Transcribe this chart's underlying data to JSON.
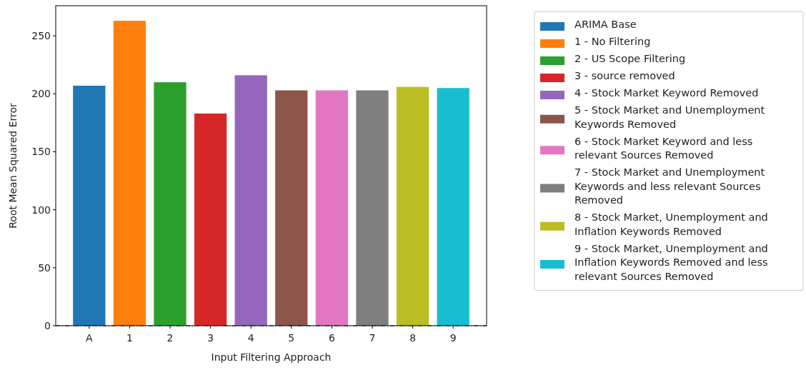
{
  "chart_data": {
    "type": "bar",
    "xlabel": "Input Filtering Approach",
    "ylabel": "Root Mean Squared Error",
    "categories": [
      "A",
      "1",
      "2",
      "3",
      "4",
      "5",
      "6",
      "7",
      "8",
      "9"
    ],
    "series": [
      {
        "name": "ARIMA Base",
        "color": "#1f77b4",
        "values": [
          207,
          null,
          null,
          null,
          null,
          null,
          null,
          null,
          null,
          null
        ]
      },
      {
        "name": "1 - No Filtering",
        "color": "#ff7f0e",
        "values": [
          null,
          263,
          null,
          null,
          null,
          null,
          null,
          null,
          null,
          null
        ]
      },
      {
        "name": "2 - US Scope Filtering",
        "color": "#2ca02c",
        "values": [
          null,
          null,
          210,
          null,
          null,
          null,
          null,
          null,
          null,
          null
        ]
      },
      {
        "name": "3 - source removed",
        "color": "#d62728",
        "values": [
          null,
          null,
          null,
          183,
          null,
          null,
          null,
          null,
          null,
          null
        ]
      },
      {
        "name": "4 - Stock Market Keyword Removed",
        "color": "#9467bd",
        "values": [
          null,
          null,
          null,
          null,
          216,
          null,
          null,
          null,
          null,
          null
        ]
      },
      {
        "name": "5 - Stock Market and Unemployment Keywords Removed",
        "color": "#8c564b",
        "values": [
          null,
          null,
          null,
          null,
          null,
          203,
          null,
          null,
          null,
          null
        ]
      },
      {
        "name": "6 - Stock Market Keyword and less relevant Sources Removed",
        "color": "#e377c2",
        "values": [
          null,
          null,
          null,
          null,
          null,
          null,
          203,
          null,
          null,
          null
        ]
      },
      {
        "name": "7 - Stock Market and Unemployment Keywords and less relevant Sources Removed",
        "color": "#7f7f7f",
        "values": [
          null,
          null,
          null,
          null,
          null,
          null,
          null,
          203,
          null,
          null
        ]
      },
      {
        "name": "8 - Stock Market, Unemployment and Inflation Keywords Removed",
        "color": "#bcbd22",
        "values": [
          null,
          null,
          null,
          null,
          null,
          null,
          null,
          null,
          206,
          null
        ]
      },
      {
        "name": "9 - Stock Market, Unemployment and Inflation Keywords Removed and less relevant Sources Removed",
        "color": "#17becf",
        "values": [
          null,
          null,
          null,
          null,
          null,
          null,
          null,
          null,
          null,
          205
        ]
      }
    ],
    "ylim": [
      0,
      276
    ],
    "yticks": [
      0,
      50,
      100,
      150,
      200,
      250
    ],
    "ref_lines": [
      {
        "axis": "y",
        "value": 0,
        "color": "#1f77b4",
        "line_style": "dashed"
      }
    ],
    "legend": "right",
    "grid": false
  }
}
